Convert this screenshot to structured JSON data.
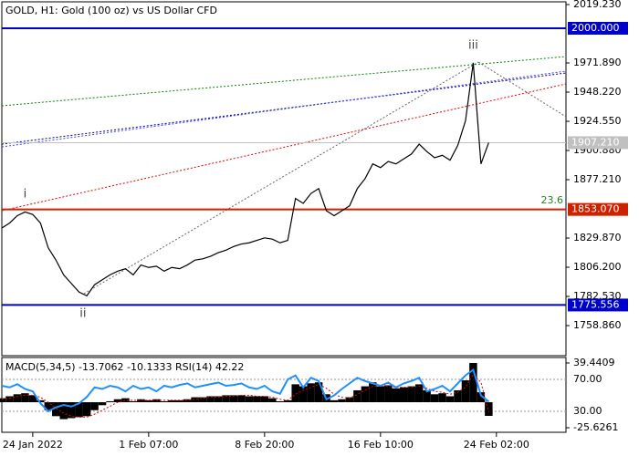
{
  "chart_data": [
    {
      "type": "line",
      "title": "GOLD, H1:  Gold (100 oz) vs US Dollar CFD",
      "color": "#000000",
      "values": [
        1838,
        1842,
        1848,
        1851,
        1849,
        1842,
        1822,
        1812,
        1800,
        1793,
        1786,
        1783,
        1792,
        1796,
        1800,
        1803,
        1805,
        1800,
        1808,
        1806,
        1807,
        1803,
        1806,
        1805,
        1808,
        1812,
        1813,
        1815,
        1818,
        1820,
        1823,
        1825,
        1826,
        1828,
        1830,
        1829,
        1826,
        1828,
        1862,
        1858,
        1866,
        1870,
        1852,
        1848,
        1852,
        1856,
        1870,
        1878,
        1890,
        1887,
        1892,
        1890,
        1894,
        1898,
        1906,
        1900,
        1895,
        1897,
        1893,
        1905,
        1925,
        1972,
        1890,
        1907.21
      ],
      "xlim": [
        0,
        73
      ],
      "ylim": [
        1734.45,
        2022.93
      ],
      "yticks": [
        {
          "value": 2019.23,
          "label": "2019.230"
        },
        {
          "value": 1971.89,
          "label": "1971.890"
        },
        {
          "value": 1948.22,
          "label": "1948.220"
        },
        {
          "value": 1924.55,
          "label": "1924.550"
        },
        {
          "value": 1900.88,
          "label": "1900.880"
        },
        {
          "value": 1877.21,
          "label": "1877.210"
        },
        {
          "value": 1829.87,
          "label": "1829.870"
        },
        {
          "value": 1806.2,
          "label": "1806.200"
        },
        {
          "value": 1782.53,
          "label": "1782.530"
        },
        {
          "value": 1758.86,
          "label": "1758.860"
        }
      ],
      "xticks": [
        {
          "value": 4,
          "label": "24 Jan 2022"
        },
        {
          "value": 19,
          "label": "1 Feb 07:00"
        },
        {
          "value": 34,
          "label": "8 Feb 20:00"
        },
        {
          "value": 49,
          "label": "16 Feb 10:00"
        },
        {
          "value": 64,
          "label": "24 Feb 02:00"
        }
      ],
      "levels": [
        {
          "value": 2000,
          "label": "2000.000",
          "color": "#0000cc"
        },
        {
          "value": 1907.21,
          "label": "1907.210",
          "color": "#c0c0c0"
        },
        {
          "value": 1853.07,
          "label": "1853.070",
          "color": "#cc2200"
        },
        {
          "value": 1775.556,
          "label": "1775.556",
          "color": "#0000cc"
        }
      ],
      "annotations": [
        "i",
        "ii",
        "iii",
        "23.6"
      ]
    },
    {
      "type": "macd",
      "label": "MACD(5,34,5) -13.7062 -10.1333 RSI(14) 42.22",
      "ylim": [
        -25.6261,
        39.4409
      ],
      "yticks": [
        39.4409,
        -25.6261
      ],
      "y2lim": [
        9.43,
        90.57
      ],
      "y2ticks": [
        {
          "value": 70,
          "label": "70.00"
        },
        {
          "value": 30,
          "label": "30.00"
        }
      ],
      "series": [
        {
          "name": "MACD",
          "color": "#000000",
          "values": [
            4,
            6,
            8,
            9,
            7,
            2,
            -8,
            -14,
            -17,
            -16,
            -15,
            -14,
            -8,
            -3,
            1,
            3,
            4,
            1,
            3,
            2,
            3,
            1,
            2,
            2,
            3,
            5,
            5,
            6,
            6,
            7,
            7,
            7,
            6,
            6,
            6,
            4,
            1,
            2,
            18,
            16,
            19,
            20,
            8,
            2,
            3,
            5,
            12,
            16,
            20,
            16,
            17,
            14,
            15,
            16,
            18,
            12,
            8,
            9,
            6,
            12,
            22,
            39.4409,
            10,
            -13.7062
          ]
        },
        {
          "name": "Signal",
          "color": "#dd0000",
          "values": [
            3,
            4,
            6,
            7,
            7,
            5,
            0,
            -6,
            -11,
            -14,
            -15,
            -15,
            -12,
            -8,
            -4,
            0,
            2,
            2,
            2,
            2,
            2,
            2,
            2,
            2,
            2,
            3,
            4,
            5,
            5,
            6,
            6,
            7,
            7,
            6,
            6,
            5,
            3,
            2,
            8,
            12,
            15,
            18,
            14,
            8,
            5,
            4,
            8,
            12,
            16,
            16,
            16,
            15,
            15,
            15,
            16,
            14,
            11,
            10,
            8,
            10,
            15,
            28,
            20,
            -10.1333
          ]
        },
        {
          "name": "RSI",
          "color": "#1e90ff",
          "axis": "y2",
          "values": [
            62,
            60,
            64,
            58,
            55,
            40,
            30,
            35,
            38,
            36,
            40,
            48,
            60,
            58,
            62,
            60,
            55,
            62,
            58,
            60,
            55,
            62,
            60,
            63,
            65,
            60,
            62,
            64,
            66,
            62,
            63,
            65,
            60,
            58,
            62,
            55,
            52,
            70,
            75,
            60,
            72,
            68,
            45,
            50,
            58,
            65,
            72,
            68,
            65,
            62,
            66,
            60,
            65,
            68,
            72,
            55,
            58,
            62,
            55,
            65,
            75,
            82,
            50,
            42.22
          ]
        }
      ]
    }
  ]
}
